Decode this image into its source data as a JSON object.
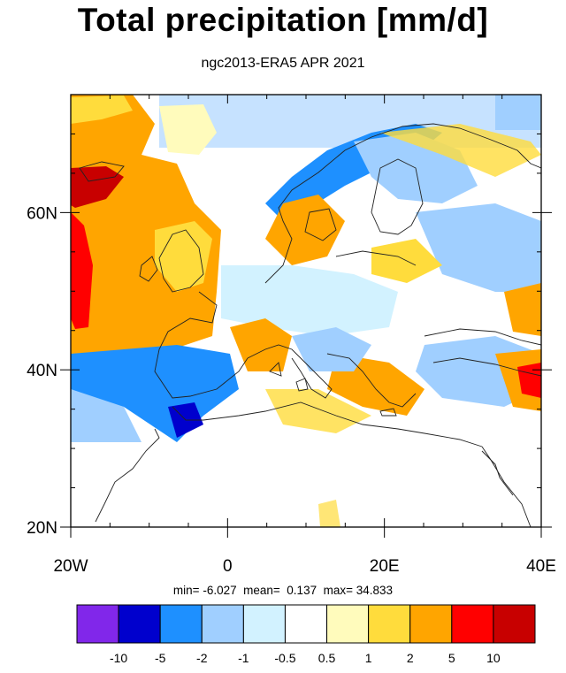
{
  "title": "Total precipitation [mm/d]",
  "subtitle": "ngc2013-ERA5 APR 2021",
  "stats": {
    "min_label": "min=",
    "min": "-6.027",
    "mean_label": "mean=",
    "mean": "0.137",
    "max_label": "max=",
    "max": "34.833"
  },
  "map": {
    "lon_range": [
      -20,
      40
    ],
    "lat_range": [
      20,
      75
    ],
    "y_ticks": [
      {
        "value": 20,
        "label": "20N"
      },
      {
        "value": 40,
        "label": "40N"
      },
      {
        "value": 60,
        "label": "60N"
      }
    ],
    "x_ticks": [
      {
        "value": -20,
        "label": "20W"
      },
      {
        "value": 0,
        "label": "0"
      },
      {
        "value": 20,
        "label": "20E"
      },
      {
        "value": 40,
        "label": "40E"
      }
    ]
  },
  "colorbar": {
    "colors": [
      "#8127ea",
      "#0000cd",
      "#1e90ff",
      "#a0cfff",
      "#d2f2ff",
      "#ffffff",
      "#fffbbc",
      "#ffdc3c",
      "#ffa500",
      "#ff0000",
      "#c80000"
    ],
    "labels": [
      "-10",
      "-5",
      "-2",
      "-1",
      "-0.5",
      "0.5",
      "1",
      "2",
      "5",
      "10"
    ]
  }
}
